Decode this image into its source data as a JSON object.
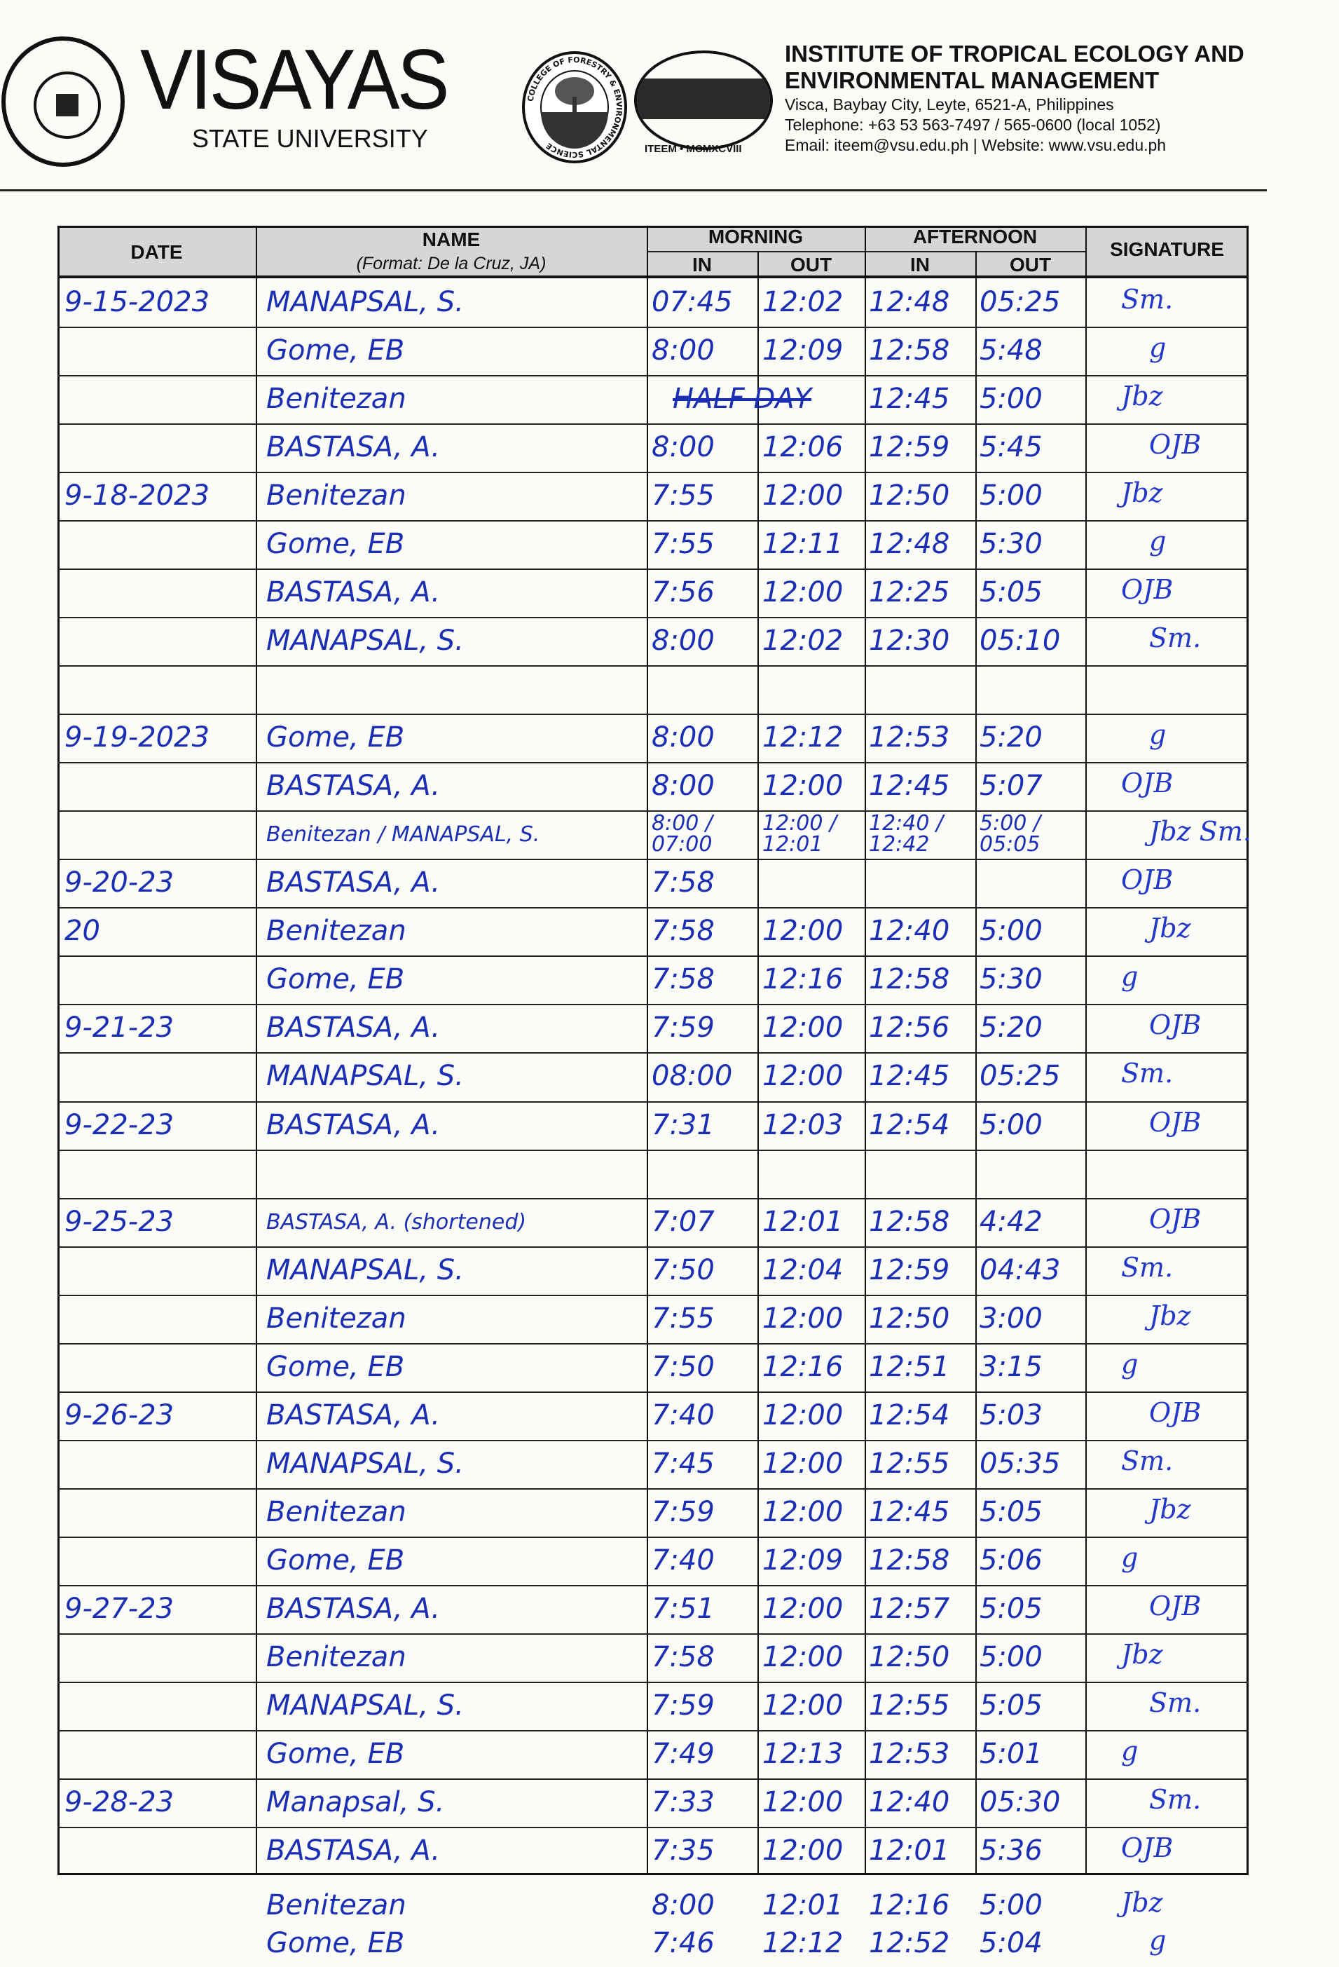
{
  "header": {
    "university_name": "VISAYAS",
    "university_sub": "STATE UNIVERSITY",
    "seal_text": "VISAYAS STATE UNIVERSITY",
    "forestry_logo_text": "COLLEGE OF FORESTRY & ENVIRONMENTAL SCIENCE",
    "iteem_logo_text": "ITEEM • MCMXCVIII",
    "institute_line1": "INSTITUTE OF TROPICAL ECOLOGY AND",
    "institute_line2": "ENVIRONMENTAL MANAGEMENT",
    "address": "Visca, Baybay City, Leyte, 6521-A, Philippines",
    "telephone": "Telephone: +63 53 563-7497 / 565-0600 (local 1052)",
    "email": "Email:  iteem@vsu.edu.ph | Website:  www.vsu.edu.ph"
  },
  "table_header": {
    "date": "DATE",
    "name": "NAME",
    "name_format": "(Format:  De la Cruz, JA)",
    "morning": "MORNING",
    "afternoon": "AFTERNOON",
    "in": "IN",
    "out": "OUT",
    "signature": "SIGNATURE"
  },
  "ink_color": "#1b2fb5",
  "rows": [
    {
      "date": "9-15-2023",
      "name": "MANAPSAL, S.",
      "am_in": "07:45",
      "am_out": "12:02",
      "pm_in": "12:48",
      "pm_out": "05:25",
      "sig": "Sm."
    },
    {
      "date": "",
      "name": "Gome, EB",
      "am_in": "8:00",
      "am_out": "12:09",
      "pm_in": "12:58",
      "pm_out": "5:48",
      "sig": "g"
    },
    {
      "date": "",
      "name": "Benitezan",
      "am_in": "HALF DAY",
      "am_out": "",
      "pm_in": "12:45",
      "pm_out": "5:00",
      "sig": "Jbz"
    },
    {
      "date": "",
      "name": "BASTASA, A.",
      "am_in": "8:00",
      "am_out": "12:06",
      "pm_in": "12:59",
      "pm_out": "5:45",
      "sig": "OJB"
    },
    {
      "date": "9-18-2023",
      "name": "Benitezan",
      "am_in": "7:55",
      "am_out": "12:00",
      "pm_in": "12:50",
      "pm_out": "5:00",
      "sig": "Jbz"
    },
    {
      "date": "",
      "name": "Gome, EB",
      "am_in": "7:55",
      "am_out": "12:11",
      "pm_in": "12:48",
      "pm_out": "5:30",
      "sig": "g"
    },
    {
      "date": "",
      "name": "BASTASA, A.",
      "am_in": "7:56",
      "am_out": "12:00",
      "pm_in": "12:25",
      "pm_out": "5:05",
      "sig": "OJB"
    },
    {
      "date": "",
      "name": "MANAPSAL, S.",
      "am_in": "8:00",
      "am_out": "12:02",
      "pm_in": "12:30",
      "pm_out": "05:10",
      "sig": "Sm."
    },
    {
      "date": "",
      "name": "",
      "am_in": "",
      "am_out": "",
      "pm_in": "",
      "pm_out": "",
      "sig": ""
    },
    {
      "date": "9-19-2023",
      "name": "Gome, EB",
      "am_in": "8:00",
      "am_out": "12:12",
      "pm_in": "12:53",
      "pm_out": "5:20",
      "sig": "g"
    },
    {
      "date": "",
      "name": "BASTASA, A.",
      "am_in": "8:00",
      "am_out": "12:00",
      "pm_in": "12:45",
      "pm_out": "5:07",
      "sig": "OJB"
    },
    {
      "date": "",
      "name": "Benitezan / MANAPSAL, S.",
      "am_in": "8:00 / 07:00",
      "am_out": "12:00 / 12:01",
      "pm_in": "12:40 / 12:42",
      "pm_out": "5:00 / 05:05",
      "sig": "Jbz Sm."
    },
    {
      "date": "9-20-23",
      "name": "BASTASA, A.",
      "am_in": "7:58",
      "am_out": "",
      "pm_in": "",
      "pm_out": "",
      "sig": "OJB"
    },
    {
      "date": "20",
      "name": "Benitezan",
      "am_in": "7:58",
      "am_out": "12:00",
      "pm_in": "12:40",
      "pm_out": "5:00",
      "sig": "Jbz"
    },
    {
      "date": "",
      "name": "Gome, EB",
      "am_in": "7:58",
      "am_out": "12:16",
      "pm_in": "12:58",
      "pm_out": "5:30",
      "sig": "g"
    },
    {
      "date": "9-21-23",
      "name": "BASTASA, A.",
      "am_in": "7:59",
      "am_out": "12:00",
      "pm_in": "12:56",
      "pm_out": "5:20",
      "sig": "OJB"
    },
    {
      "date": "",
      "name": "MANAPSAL, S.",
      "am_in": "08:00",
      "am_out": "12:00",
      "pm_in": "12:45",
      "pm_out": "05:25",
      "sig": "Sm."
    },
    {
      "date": "9-22-23",
      "name": "BASTASA, A.",
      "am_in": "7:31",
      "am_out": "12:03",
      "pm_in": "12:54",
      "pm_out": "5:00",
      "sig": "OJB"
    },
    {
      "date": "",
      "name": "",
      "am_in": "",
      "am_out": "",
      "pm_in": "",
      "pm_out": "",
      "sig": ""
    },
    {
      "date": "9-25-23",
      "name": "BASTASA, A. (shortened)",
      "am_in": "7:07",
      "am_out": "12:01",
      "pm_in": "12:58",
      "pm_out": "4:42",
      "sig": "OJB"
    },
    {
      "date": "",
      "name": "MANAPSAL, S.",
      "am_in": "7:50",
      "am_out": "12:04",
      "pm_in": "12:59",
      "pm_out": "04:43",
      "sig": "Sm."
    },
    {
      "date": "",
      "name": "Benitezan",
      "am_in": "7:55",
      "am_out": "12:00",
      "pm_in": "12:50",
      "pm_out": "3:00",
      "sig": "Jbz"
    },
    {
      "date": "",
      "name": "Gome, EB",
      "am_in": "7:50",
      "am_out": "12:16",
      "pm_in": "12:51",
      "pm_out": "3:15",
      "sig": "g"
    },
    {
      "date": "9-26-23",
      "name": "BASTASA, A.",
      "am_in": "7:40",
      "am_out": "12:00",
      "pm_in": "12:54",
      "pm_out": "5:03",
      "sig": "OJB"
    },
    {
      "date": "",
      "name": "MANAPSAL, S.",
      "am_in": "7:45",
      "am_out": "12:00",
      "pm_in": "12:55",
      "pm_out": "05:35",
      "sig": "Sm."
    },
    {
      "date": "",
      "name": "Benitezan",
      "am_in": "7:59",
      "am_out": "12:00",
      "pm_in": "12:45",
      "pm_out": "5:05",
      "sig": "Jbz"
    },
    {
      "date": "",
      "name": "Gome, EB",
      "am_in": "7:40",
      "am_out": "12:09",
      "pm_in": "12:58",
      "pm_out": "5:06",
      "sig": "g"
    },
    {
      "date": "9-27-23",
      "name": "BASTASA, A.",
      "am_in": "7:51",
      "am_out": "12:00",
      "pm_in": "12:57",
      "pm_out": "5:05",
      "sig": "OJB"
    },
    {
      "date": "",
      "name": "Benitezan",
      "am_in": "7:58",
      "am_out": "12:00",
      "pm_in": "12:50",
      "pm_out": "5:00",
      "sig": "Jbz"
    },
    {
      "date": "",
      "name": "MANAPSAL, S.",
      "am_in": "7:59",
      "am_out": "12:00",
      "pm_in": "12:55",
      "pm_out": "5:05",
      "sig": "Sm."
    },
    {
      "date": "",
      "name": "Gome, EB",
      "am_in": "7:49",
      "am_out": "12:13",
      "pm_in": "12:53",
      "pm_out": "5:01",
      "sig": "g"
    },
    {
      "date": "9-28-23",
      "name": "Manapsal, S.",
      "am_in": "7:33",
      "am_out": "12:00",
      "pm_in": "12:40",
      "pm_out": "05:30",
      "sig": "Sm."
    },
    {
      "date": "",
      "name": "BASTASA, A.",
      "am_in": "7:35",
      "am_out": "12:00",
      "pm_in": "12:01",
      "pm_out": "5:36",
      "sig": "OJB"
    }
  ],
  "below_table": [
    {
      "name": "Benitezan",
      "am_in": "8:00",
      "am_out": "12:01",
      "pm_in": "12:16",
      "pm_out": "5:00",
      "sig": "Jbz"
    },
    {
      "name": "Gome, EB",
      "am_in": "7:46",
      "am_out": "12:12",
      "pm_in": "12:52",
      "pm_out": "5:04",
      "sig": "g"
    }
  ]
}
